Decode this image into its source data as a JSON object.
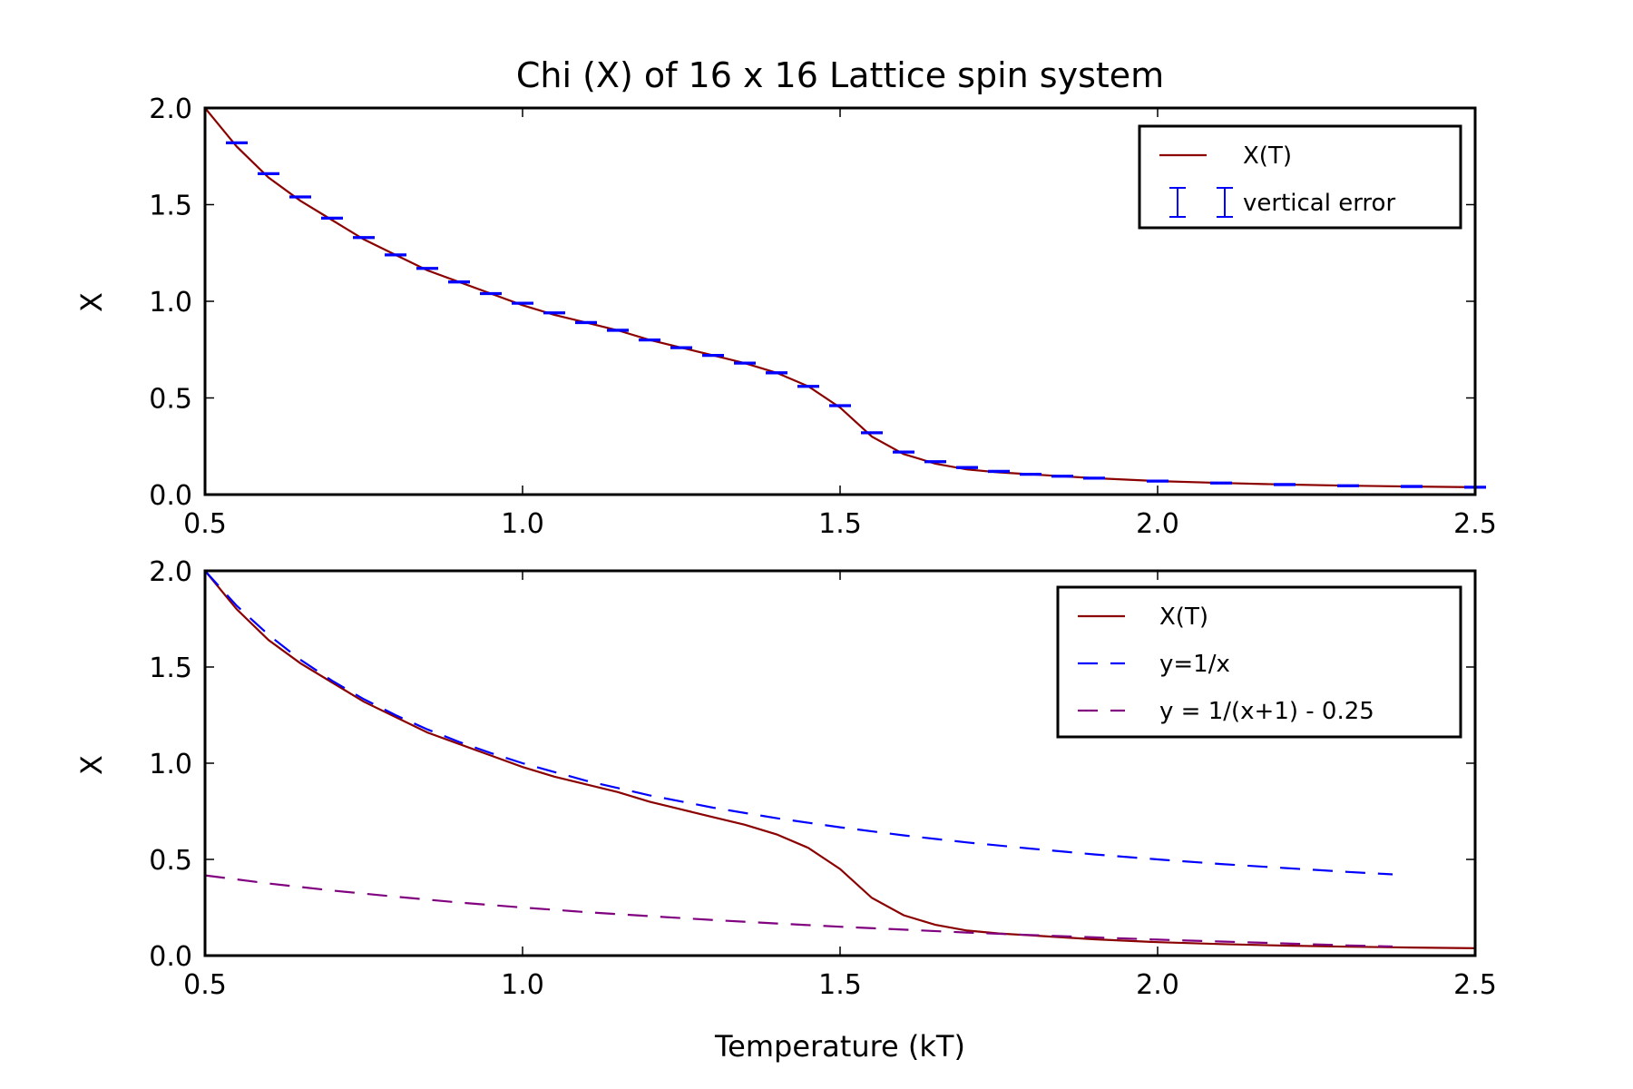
{
  "chart_data": [
    {
      "type": "line",
      "title": "Chi (X) of 16 x 16 Lattice spin system",
      "xlabel": "",
      "ylabel": "X",
      "xlim": [
        0.5,
        2.5
      ],
      "ylim": [
        0.0,
        2.0
      ],
      "xticks": [
        "0.5",
        "1.0",
        "1.5",
        "2.0",
        "2.5"
      ],
      "yticks": [
        "0.0",
        "0.5",
        "1.0",
        "1.5",
        "2.0"
      ],
      "grid": false,
      "legend_position": "top-right",
      "series": [
        {
          "name": "X(T)",
          "color": "#8b0000",
          "style": "solid",
          "x": [
            0.5,
            0.55,
            0.6,
            0.65,
            0.7,
            0.75,
            0.8,
            0.85,
            0.9,
            0.95,
            1.0,
            1.05,
            1.1,
            1.15,
            1.2,
            1.25,
            1.3,
            1.35,
            1.4,
            1.45,
            1.5,
            1.55,
            1.6,
            1.65,
            1.7,
            1.75,
            1.8,
            1.85,
            1.9,
            2.0,
            2.1,
            2.2,
            2.3,
            2.4,
            2.5
          ],
          "y": [
            2.0,
            1.8,
            1.64,
            1.52,
            1.42,
            1.32,
            1.24,
            1.16,
            1.1,
            1.04,
            0.98,
            0.93,
            0.89,
            0.85,
            0.8,
            0.76,
            0.72,
            0.68,
            0.63,
            0.56,
            0.45,
            0.3,
            0.21,
            0.16,
            0.13,
            0.115,
            0.105,
            0.095,
            0.085,
            0.07,
            0.06,
            0.052,
            0.046,
            0.042,
            0.038
          ]
        },
        {
          "name": "vertical error",
          "color": "#0000ff",
          "style": "errorbar",
          "x": [
            0.55,
            0.6,
            0.65,
            0.7,
            0.75,
            0.8,
            0.85,
            0.9,
            0.95,
            1.0,
            1.05,
            1.1,
            1.15,
            1.2,
            1.25,
            1.3,
            1.35,
            1.4,
            1.45,
            1.5,
            1.55,
            1.6,
            1.65,
            1.7,
            1.75,
            1.8,
            1.85,
            1.9,
            2.0,
            2.1,
            2.2,
            2.3,
            2.4,
            2.5
          ],
          "y": [
            1.82,
            1.66,
            1.54,
            1.43,
            1.33,
            1.24,
            1.17,
            1.1,
            1.04,
            0.99,
            0.94,
            0.89,
            0.85,
            0.8,
            0.76,
            0.72,
            0.68,
            0.63,
            0.56,
            0.46,
            0.32,
            0.22,
            0.17,
            0.14,
            0.12,
            0.105,
            0.095,
            0.085,
            0.07,
            0.06,
            0.052,
            0.046,
            0.042,
            0.038
          ],
          "error": [
            0.003,
            0.003,
            0.003,
            0.003,
            0.003,
            0.003,
            0.003,
            0.003,
            0.003,
            0.003,
            0.003,
            0.003,
            0.003,
            0.003,
            0.003,
            0.003,
            0.003,
            0.003,
            0.003,
            0.003,
            0.003,
            0.003,
            0.003,
            0.003,
            0.003,
            0.003,
            0.003,
            0.003,
            0.003,
            0.003,
            0.003,
            0.003,
            0.003,
            0.003
          ]
        }
      ]
    },
    {
      "type": "line",
      "title": "",
      "xlabel": "Temperature (kT)",
      "ylabel": "X",
      "xlim": [
        0.5,
        2.5
      ],
      "ylim": [
        0.0,
        2.0
      ],
      "xticks": [
        "0.5",
        "1.0",
        "1.5",
        "2.0",
        "2.5"
      ],
      "yticks": [
        "0.0",
        "0.5",
        "1.0",
        "1.5",
        "2.0"
      ],
      "grid": false,
      "legend_position": "top-right",
      "series": [
        {
          "name": "X(T)",
          "color": "#8b0000",
          "style": "solid",
          "x": [
            0.5,
            0.55,
            0.6,
            0.65,
            0.7,
            0.75,
            0.8,
            0.85,
            0.9,
            0.95,
            1.0,
            1.05,
            1.1,
            1.15,
            1.2,
            1.25,
            1.3,
            1.35,
            1.4,
            1.45,
            1.5,
            1.55,
            1.6,
            1.65,
            1.7,
            1.75,
            1.8,
            1.85,
            1.9,
            2.0,
            2.1,
            2.2,
            2.3,
            2.4,
            2.5
          ],
          "y": [
            2.0,
            1.8,
            1.64,
            1.52,
            1.42,
            1.32,
            1.24,
            1.16,
            1.1,
            1.04,
            0.98,
            0.93,
            0.89,
            0.85,
            0.8,
            0.76,
            0.72,
            0.68,
            0.63,
            0.56,
            0.45,
            0.3,
            0.21,
            0.16,
            0.13,
            0.115,
            0.105,
            0.095,
            0.085,
            0.07,
            0.06,
            0.052,
            0.046,
            0.042,
            0.038
          ]
        },
        {
          "name": "y=1/x",
          "color": "#0000ff",
          "style": "dashed",
          "x": [
            0.5,
            0.55,
            0.6,
            0.65,
            0.7,
            0.75,
            0.8,
            0.85,
            0.9,
            0.95,
            1.0,
            1.1,
            1.2,
            1.3,
            1.4,
            1.5,
            1.6,
            1.7,
            1.8,
            1.9,
            2.0,
            2.1,
            2.2,
            2.3,
            2.37
          ],
          "y": [
            2.0,
            1.818,
            1.667,
            1.538,
            1.429,
            1.333,
            1.25,
            1.176,
            1.111,
            1.053,
            1.0,
            0.909,
            0.833,
            0.769,
            0.714,
            0.667,
            0.625,
            0.588,
            0.556,
            0.526,
            0.5,
            0.476,
            0.455,
            0.435,
            0.422
          ]
        },
        {
          "name": "y = 1/(x+1) - 0.25",
          "color": "#800080",
          "style": "dashed",
          "x": [
            0.5,
            0.6,
            0.7,
            0.8,
            0.9,
            1.0,
            1.1,
            1.2,
            1.3,
            1.4,
            1.5,
            1.6,
            1.7,
            1.8,
            1.9,
            2.0,
            2.1,
            2.2,
            2.3,
            2.37
          ],
          "y": [
            0.417,
            0.375,
            0.338,
            0.306,
            0.276,
            0.25,
            0.226,
            0.205,
            0.185,
            0.167,
            0.15,
            0.135,
            0.12,
            0.107,
            0.095,
            0.083,
            0.073,
            0.063,
            0.053,
            0.047
          ]
        }
      ]
    }
  ]
}
